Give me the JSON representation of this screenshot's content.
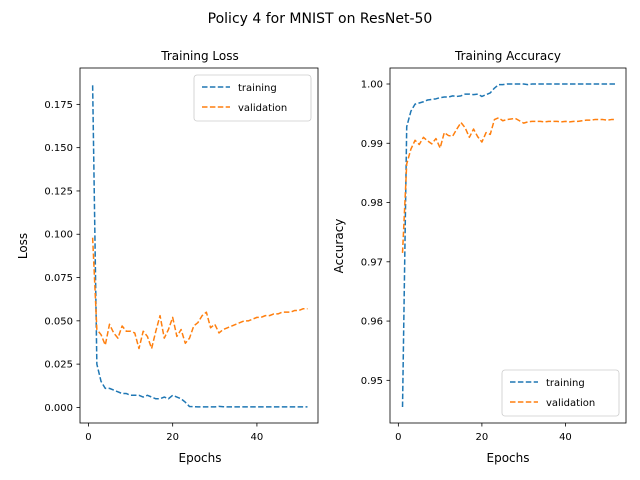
{
  "figure": {
    "suptitle": "Policy 4 for MNIST on ResNet-50"
  },
  "chart_data": [
    {
      "type": "line",
      "title": "Training Loss",
      "xlabel": "Epochs",
      "ylabel": "Loss",
      "xlim": [
        -2,
        54.5
      ],
      "ylim": [
        -0.009,
        0.196
      ],
      "xticks": [
        0,
        20,
        40
      ],
      "yticks": [
        0.0,
        0.025,
        0.05,
        0.075,
        0.1,
        0.125,
        0.15,
        0.175
      ],
      "ytick_labels": [
        "0.000",
        "0.025",
        "0.050",
        "0.075",
        "0.100",
        "0.125",
        "0.150",
        "0.175"
      ],
      "legend": "top-right",
      "grid": false,
      "series": [
        {
          "name": "training",
          "color": "#1f77b4",
          "x": [
            1,
            2,
            3,
            4,
            5,
            6,
            7,
            8,
            9,
            10,
            11,
            12,
            13,
            14,
            15,
            16,
            17,
            18,
            19,
            20,
            21,
            22,
            23,
            24,
            25,
            26,
            27,
            28,
            29,
            30,
            31,
            32,
            33,
            34,
            35,
            36,
            37,
            38,
            39,
            40,
            41,
            42,
            43,
            44,
            45,
            46,
            47,
            48,
            49,
            50,
            51,
            52
          ],
          "y": [
            0.186,
            0.025,
            0.015,
            0.011,
            0.011,
            0.01,
            0.009,
            0.008,
            0.008,
            0.007,
            0.007,
            0.007,
            0.006,
            0.007,
            0.006,
            0.005,
            0.005,
            0.006,
            0.005,
            0.007,
            0.006,
            0.005,
            0.003,
            0.0005,
            0.0004,
            0.0003,
            0.0003,
            0.0003,
            0.0003,
            0.0003,
            0.0006,
            0.0004,
            0.0003,
            0.0003,
            0.0003,
            0.0003,
            0.0003,
            0.0003,
            0.0003,
            0.0003,
            0.0003,
            0.0003,
            0.0003,
            0.0003,
            0.0003,
            0.0003,
            0.0003,
            0.0003,
            0.0003,
            0.0003,
            0.0003,
            0.0003
          ]
        },
        {
          "name": "validation",
          "color": "#ff7f0e",
          "x": [
            1,
            2,
            3,
            4,
            5,
            6,
            7,
            8,
            9,
            10,
            11,
            12,
            13,
            14,
            15,
            16,
            17,
            18,
            19,
            20,
            21,
            22,
            23,
            24,
            25,
            26,
            27,
            28,
            29,
            30,
            31,
            32,
            33,
            34,
            35,
            36,
            37,
            38,
            39,
            40,
            41,
            42,
            43,
            44,
            45,
            46,
            47,
            48,
            49,
            50,
            51,
            52
          ],
          "y": [
            0.098,
            0.045,
            0.042,
            0.036,
            0.048,
            0.043,
            0.04,
            0.047,
            0.044,
            0.044,
            0.043,
            0.034,
            0.044,
            0.041,
            0.034,
            0.044,
            0.053,
            0.04,
            0.045,
            0.052,
            0.041,
            0.045,
            0.037,
            0.04,
            0.047,
            0.049,
            0.053,
            0.055,
            0.046,
            0.048,
            0.043,
            0.045,
            0.046,
            0.047,
            0.048,
            0.049,
            0.05,
            0.05,
            0.051,
            0.052,
            0.052,
            0.053,
            0.053,
            0.054,
            0.054,
            0.055,
            0.055,
            0.055,
            0.056,
            0.056,
            0.057,
            0.057
          ]
        }
      ]
    },
    {
      "type": "line",
      "title": "Training Accuracy",
      "xlabel": "Epochs",
      "ylabel": "Accuracy",
      "xlim": [
        -2,
        54.5
      ],
      "ylim": [
        0.9428,
        1.0027
      ],
      "xticks": [
        0,
        20,
        40
      ],
      "yticks": [
        0.95,
        0.96,
        0.97,
        0.98,
        0.99,
        1.0
      ],
      "ytick_labels": [
        "0.95",
        "0.96",
        "0.97",
        "0.98",
        "0.99",
        "1.00"
      ],
      "legend": "bottom-right",
      "grid": false,
      "series": [
        {
          "name": "training",
          "color": "#1f77b4",
          "x": [
            1,
            2,
            3,
            4,
            5,
            6,
            7,
            8,
            9,
            10,
            11,
            12,
            13,
            14,
            15,
            16,
            17,
            18,
            19,
            20,
            21,
            22,
            23,
            24,
            25,
            26,
            27,
            28,
            29,
            30,
            31,
            32,
            33,
            34,
            35,
            36,
            37,
            38,
            39,
            40,
            41,
            42,
            43,
            44,
            45,
            46,
            47,
            48,
            49,
            50,
            51,
            52
          ],
          "y": [
            0.9455,
            0.9928,
            0.9954,
            0.9966,
            0.9968,
            0.997,
            0.9973,
            0.9974,
            0.9975,
            0.9977,
            0.9978,
            0.9978,
            0.998,
            0.9979,
            0.998,
            0.9983,
            0.9983,
            0.9982,
            0.9983,
            0.9979,
            0.9982,
            0.9985,
            0.9993,
            0.9999,
            0.9999,
            1.0,
            1.0,
            1.0,
            1.0,
            1.0,
            0.9999,
            1.0,
            1.0,
            1.0,
            1.0,
            1.0,
            1.0,
            1.0,
            1.0,
            1.0,
            1.0,
            1.0,
            1.0,
            1.0,
            1.0,
            1.0,
            1.0,
            1.0,
            1.0,
            1.0,
            1.0,
            1.0
          ]
        },
        {
          "name": "validation",
          "color": "#ff7f0e",
          "x": [
            1,
            2,
            3,
            4,
            5,
            6,
            7,
            8,
            9,
            10,
            11,
            12,
            13,
            14,
            15,
            16,
            17,
            18,
            19,
            20,
            21,
            22,
            23,
            24,
            25,
            26,
            27,
            28,
            29,
            30,
            31,
            32,
            33,
            34,
            35,
            36,
            37,
            38,
            39,
            40,
            41,
            42,
            43,
            44,
            45,
            46,
            47,
            48,
            49,
            50,
            51,
            52
          ],
          "y": [
            0.9715,
            0.9865,
            0.989,
            0.9905,
            0.9898,
            0.991,
            0.9904,
            0.9899,
            0.9908,
            0.9892,
            0.9918,
            0.9913,
            0.9912,
            0.9924,
            0.9935,
            0.9926,
            0.991,
            0.9924,
            0.9911,
            0.9902,
            0.9918,
            0.9915,
            0.994,
            0.9943,
            0.9938,
            0.994,
            0.9941,
            0.9942,
            0.9938,
            0.9934,
            0.9936,
            0.9937,
            0.9937,
            0.9937,
            0.9936,
            0.9937,
            0.9937,
            0.9937,
            0.9936,
            0.9937,
            0.9936,
            0.9937,
            0.9937,
            0.9938,
            0.9939,
            0.9939,
            0.994,
            0.994,
            0.994,
            0.9939,
            0.994,
            0.994
          ]
        }
      ]
    }
  ]
}
